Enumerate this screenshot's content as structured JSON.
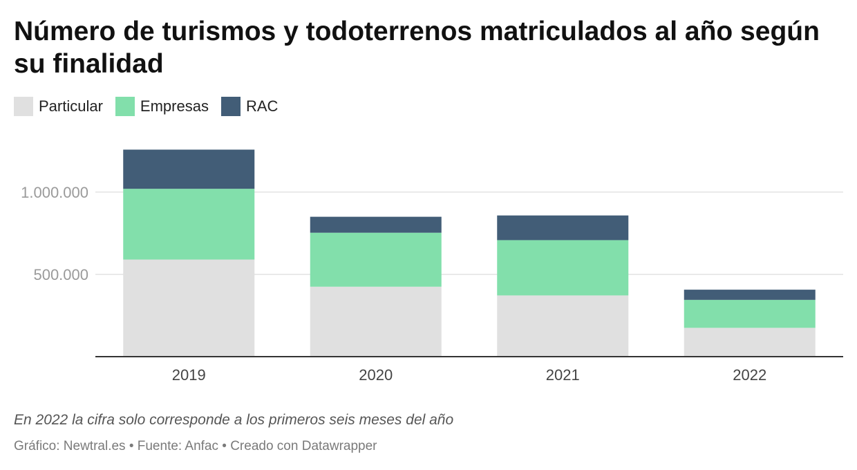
{
  "chart_data": {
    "type": "bar",
    "stacked": true,
    "title": "Número de turismos y todoterrenos matriculados al año según su finalidad",
    "categories": [
      "2019",
      "2020",
      "2021",
      "2022"
    ],
    "series": [
      {
        "name": "Particular",
        "color": "#e0e0e0",
        "values": [
          590000,
          425000,
          372000,
          175000
        ]
      },
      {
        "name": "Empresas",
        "color": "#82dfab",
        "values": [
          430000,
          328000,
          336000,
          170000
        ]
      },
      {
        "name": "RAC",
        "color": "#425d77",
        "values": [
          238000,
          97000,
          150000,
          62000
        ]
      }
    ],
    "y_ticks": [
      {
        "value": 500000,
        "label": "500.000"
      },
      {
        "value": 1000000,
        "label": "1.000.000"
      }
    ],
    "ylim": [
      0,
      1260000
    ],
    "grid": true,
    "legend_position": "top-left",
    "note": "En 2022 la cifra solo corresponde a los primeros seis meses del año",
    "footer": "Gráfico: Newtral.es • Fuente: Anfac • Creado con Datawrapper"
  }
}
